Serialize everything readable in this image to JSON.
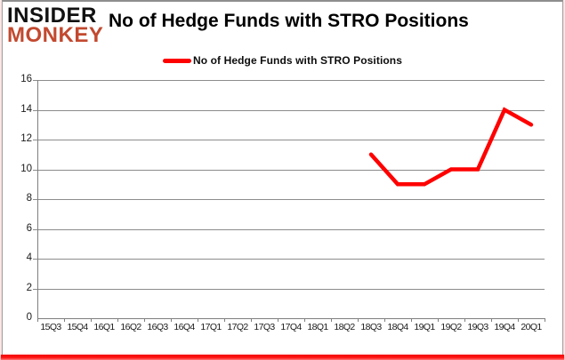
{
  "brand": {
    "line1": "INSIDER",
    "line2": "MONKEY",
    "line1_color": "#111111",
    "line2_color": "#c2492f"
  },
  "header": {
    "title": "No of Hedge Funds with STRO Positions"
  },
  "legend": {
    "label": "No of Hedge Funds with STRO Positions",
    "marker_color": "#ff0000"
  },
  "chart_data": {
    "type": "line",
    "title": "No of Hedge Funds with STRO Positions",
    "categories": [
      "15Q3",
      "15Q4",
      "16Q1",
      "16Q2",
      "16Q3",
      "16Q4",
      "17Q1",
      "17Q2",
      "17Q3",
      "17Q4",
      "18Q1",
      "18Q2",
      "18Q3",
      "18Q4",
      "19Q1",
      "19Q2",
      "19Q3",
      "19Q4",
      "20Q1"
    ],
    "series": [
      {
        "name": "No of Hedge Funds with STRO Positions",
        "color": "#ff0000",
        "values": [
          null,
          null,
          null,
          null,
          null,
          null,
          null,
          null,
          null,
          null,
          null,
          null,
          11,
          9,
          9,
          10,
          10,
          14,
          13
        ]
      }
    ],
    "xlabel": "",
    "ylabel": "",
    "ylim": [
      0,
      16
    ],
    "ytick_step": 2,
    "grid": "horizontal",
    "legend_position": "top-center"
  },
  "colors": {
    "grid": "#8c8c8c",
    "axis": "#7f7f7f",
    "text": "#1a1a1a",
    "accent_red": "#ff0000"
  }
}
